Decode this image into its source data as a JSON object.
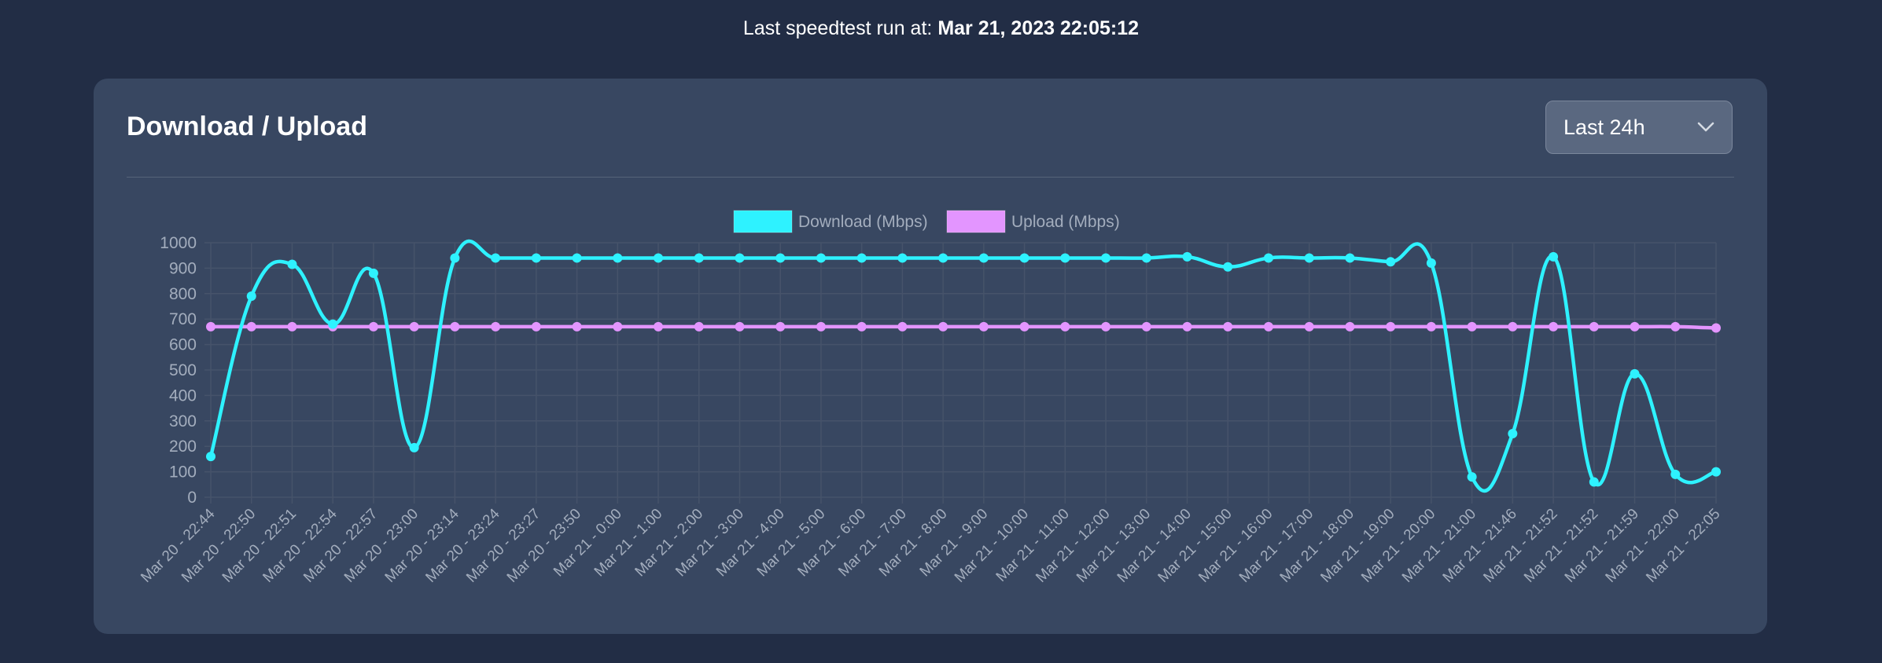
{
  "header": {
    "last_run_prefix": "Last speedtest run at: ",
    "last_run_value": "Mar 21, 2023 22:05:12"
  },
  "card": {
    "title": "Download / Upload",
    "range_select": {
      "selected": "Last 24h"
    }
  },
  "colors": {
    "background": "#222d45",
    "card": "#384761",
    "download": "#2ef2ff",
    "upload": "#e395ff",
    "grid": "#46536a",
    "tick_text": "#a3adbd"
  },
  "chart_data": {
    "type": "line",
    "title": "",
    "xlabel": "",
    "ylabel": "",
    "ylim": [
      0,
      1000
    ],
    "yticks": [
      0,
      100,
      200,
      300,
      400,
      500,
      600,
      700,
      800,
      900,
      1000
    ],
    "grid": true,
    "legend_position": "top-center",
    "categories": [
      "Mar 20 - 22:44",
      "Mar 20 - 22:50",
      "Mar 20 - 22:51",
      "Mar 20 - 22:54",
      "Mar 20 - 22:57",
      "Mar 20 - 23:00",
      "Mar 20 - 23:14",
      "Mar 20 - 23:24",
      "Mar 20 - 23:27",
      "Mar 20 - 23:50",
      "Mar 21 - 0:00",
      "Mar 21 - 1:00",
      "Mar 21 - 2:00",
      "Mar 21 - 3:00",
      "Mar 21 - 4:00",
      "Mar 21 - 5:00",
      "Mar 21 - 6:00",
      "Mar 21 - 7:00",
      "Mar 21 - 8:00",
      "Mar 21 - 9:00",
      "Mar 21 - 10:00",
      "Mar 21 - 11:00",
      "Mar 21 - 12:00",
      "Mar 21 - 13:00",
      "Mar 21 - 14:00",
      "Mar 21 - 15:00",
      "Mar 21 - 16:00",
      "Mar 21 - 17:00",
      "Mar 21 - 18:00",
      "Mar 21 - 19:00",
      "Mar 21 - 20:00",
      "Mar 21 - 21:00",
      "Mar 21 - 21:46",
      "Mar 21 - 21:52",
      "Mar 21 - 21:52",
      "Mar 21 - 21:59",
      "Mar 21 - 22:00",
      "Mar 21 - 22:05"
    ],
    "series": [
      {
        "name": "Download (Mbps)",
        "color": "#2ef2ff",
        "values": [
          160,
          790,
          915,
          680,
          880,
          195,
          940,
          940,
          940,
          940,
          940,
          940,
          940,
          940,
          940,
          940,
          940,
          940,
          940,
          940,
          940,
          940,
          940,
          940,
          945,
          905,
          940,
          940,
          940,
          925,
          920,
          80,
          250,
          945,
          60,
          485,
          90,
          100
        ]
      },
      {
        "name": "Upload (Mbps)",
        "color": "#e395ff",
        "values": [
          670,
          670,
          670,
          670,
          670,
          670,
          670,
          670,
          670,
          670,
          670,
          670,
          670,
          670,
          670,
          670,
          670,
          670,
          670,
          670,
          670,
          670,
          670,
          670,
          670,
          670,
          670,
          670,
          670,
          670,
          670,
          670,
          670,
          670,
          670,
          670,
          670,
          665
        ]
      }
    ]
  }
}
